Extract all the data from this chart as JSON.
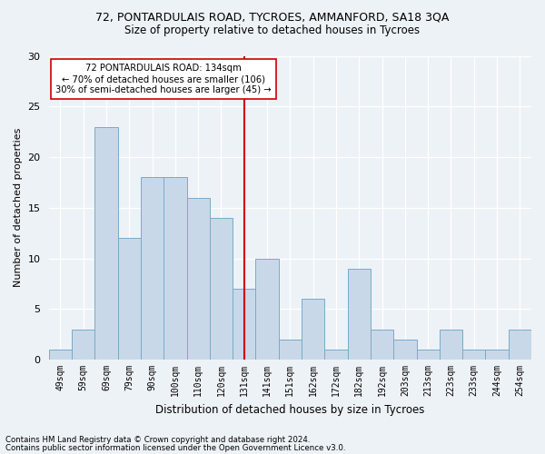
{
  "title1": "72, PONTARDULAIS ROAD, TYCROES, AMMANFORD, SA18 3QA",
  "title2": "Size of property relative to detached houses in Tycroes",
  "xlabel": "Distribution of detached houses by size in Tycroes",
  "ylabel": "Number of detached properties",
  "categories": [
    "49sqm",
    "59sqm",
    "69sqm",
    "79sqm",
    "90sqm",
    "100sqm",
    "110sqm",
    "120sqm",
    "131sqm",
    "141sqm",
    "151sqm",
    "162sqm",
    "172sqm",
    "182sqm",
    "192sqm",
    "203sqm",
    "213sqm",
    "223sqm",
    "233sqm",
    "244sqm",
    "254sqm"
  ],
  "values": [
    1,
    3,
    23,
    12,
    18,
    18,
    16,
    14,
    7,
    10,
    2,
    6,
    1,
    9,
    3,
    2,
    1,
    3,
    1,
    1,
    3
  ],
  "bar_color": "#c8d8e8",
  "bar_edge_color": "#7aaac8",
  "vline_x_idx": 8,
  "vline_color": "#cc0000",
  "annotation_text": "72 PONTARDULAIS ROAD: 134sqm\n← 70% of detached houses are smaller (106)\n30% of semi-detached houses are larger (45) →",
  "annotation_box_color": "#ffffff",
  "annotation_box_edge_color": "#cc0000",
  "ylim": [
    0,
    30
  ],
  "yticks": [
    0,
    5,
    10,
    15,
    20,
    25,
    30
  ],
  "footnote1": "Contains HM Land Registry data © Crown copyright and database right 2024.",
  "footnote2": "Contains public sector information licensed under the Open Government Licence v3.0.",
  "bg_color": "#edf2f7",
  "plot_bg_color": "#edf2f7"
}
